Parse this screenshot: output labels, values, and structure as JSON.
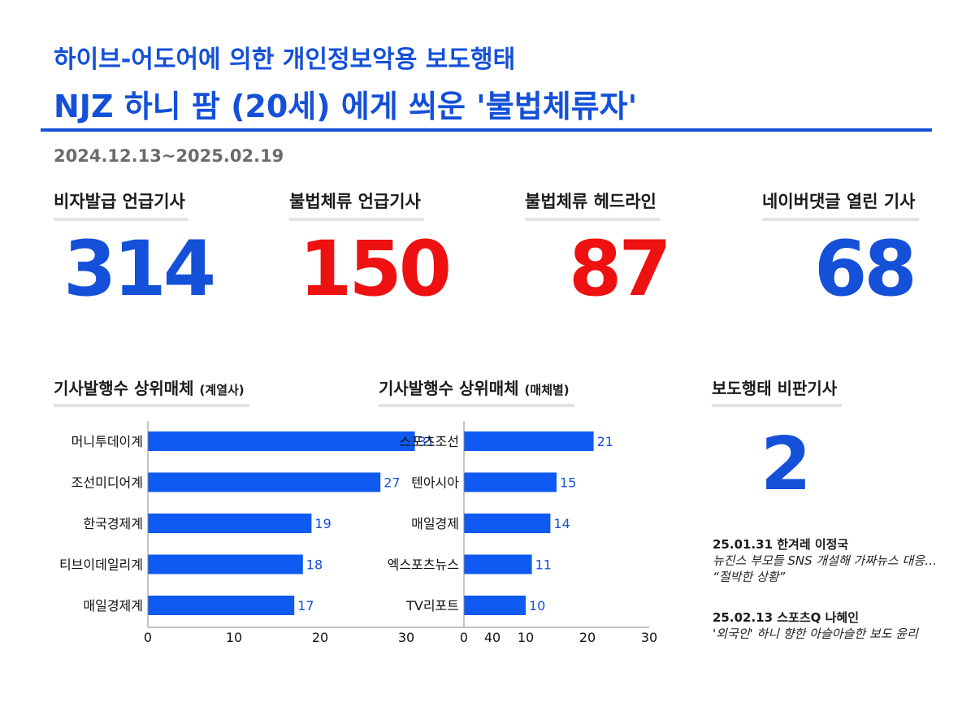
{
  "header": {
    "subtitle": "하이브-어도어에 의한 개인정보악용 보도행태",
    "title": "NJZ 하니 팜 (20세) 에게 씌운 '불법체류자'",
    "date_range": "2024.12.13~2025.02.19"
  },
  "colors": {
    "blue": "#1450d8",
    "red": "#ee1111",
    "bar": "#0f5af0"
  },
  "stats": [
    {
      "label": "비자발급 언급기사",
      "value": "314",
      "color": "#1450d8"
    },
    {
      "label": "불법체류 언급기사",
      "value": "150",
      "color": "#ee1111"
    },
    {
      "label": "불법체류 헤드라인",
      "value": "87",
      "color": "#ee1111"
    },
    {
      "label": "네이버댓글 열린 기사",
      "value": "68",
      "color": "#1450d8"
    }
  ],
  "chart_data": [
    {
      "type": "bar",
      "orientation": "horizontal",
      "title": "기사발행수 상위매체",
      "title_note": "(계열사)",
      "categories": [
        "머니투데이계",
        "조선미디어계",
        "한국경제계",
        "티브이데일리계",
        "매일경제계"
      ],
      "values": [
        31,
        27,
        19,
        18,
        17
      ],
      "xlim": [
        0,
        40
      ],
      "xticks": [
        0,
        10,
        20,
        30,
        40
      ]
    },
    {
      "type": "bar",
      "orientation": "horizontal",
      "title": "기사발행수 상위매체",
      "title_note": "(매체별)",
      "categories": [
        "스포츠조선",
        "텐아시아",
        "매일경제",
        "엑스포츠뉴스",
        "TV리포트"
      ],
      "values": [
        21,
        15,
        14,
        11,
        10
      ],
      "xlim": [
        0,
        30
      ],
      "xticks": [
        0,
        10,
        20,
        30
      ]
    }
  ],
  "critical": {
    "title": "보도행태 비판기사",
    "value": "2",
    "articles": [
      {
        "head": "25.01.31 한겨레 이정국",
        "desc": "뉴진스 부모들 SNS 개설해 가짜뉴스 대응… “절박한 상황”"
      },
      {
        "head": "25.02.13 스포츠Q 나혜인",
        "desc": "'외국인' 하니 향한 아슬아슬한 보도 윤리"
      }
    ]
  }
}
